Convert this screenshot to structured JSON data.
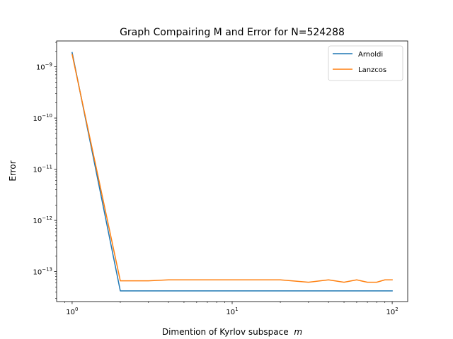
{
  "chart_data": {
    "type": "line",
    "title": "Graph Compairing M and Error for N=524288",
    "xlabel": "Dimention of Kyrlov subspace",
    "xlabel_math": "m",
    "ylabel": "Error",
    "xscale": "log",
    "yscale": "log",
    "xlim": [
      0.8,
      125
    ],
    "ylim": [
      2.6e-14,
      3.2e-09
    ],
    "grid": false,
    "legend_position": "top-right",
    "x_ticks": [
      {
        "value": 1,
        "base": "10",
        "exp": "0"
      },
      {
        "value": 10,
        "base": "10",
        "exp": "1"
      },
      {
        "value": 100,
        "base": "10",
        "exp": "2"
      }
    ],
    "y_ticks": [
      {
        "value": 1e-09,
        "base": "10",
        "exp": "−9"
      },
      {
        "value": 1e-10,
        "base": "10",
        "exp": "−10"
      },
      {
        "value": 1e-11,
        "base": "10",
        "exp": "−11"
      },
      {
        "value": 1e-12,
        "base": "10",
        "exp": "−12"
      },
      {
        "value": 1e-13,
        "base": "10",
        "exp": "−13"
      }
    ],
    "series": [
      {
        "name": "Arnoldi",
        "color": "#1f77b4",
        "x": [
          1,
          2,
          3,
          4,
          5,
          10,
          20,
          30,
          40,
          50,
          60,
          70,
          80,
          90,
          100
        ],
        "y": [
          1.9e-09,
          4.2e-14,
          4.2e-14,
          4.2e-14,
          4.2e-14,
          4.2e-14,
          4.2e-14,
          4.2e-14,
          4.2e-14,
          4.2e-14,
          4.2e-14,
          4.2e-14,
          4.2e-14,
          4.2e-14,
          4.2e-14
        ]
      },
      {
        "name": "Lanzcos",
        "color": "#ff7f0e",
        "x": [
          1,
          2,
          3,
          4,
          5,
          10,
          20,
          30,
          40,
          50,
          60,
          70,
          80,
          90,
          100
        ],
        "y": [
          1.75e-09,
          6.6e-14,
          6.6e-14,
          6.9e-14,
          6.9e-14,
          6.9e-14,
          6.9e-14,
          6.2e-14,
          6.9e-14,
          6.2e-14,
          6.9e-14,
          6.2e-14,
          6.2e-14,
          6.9e-14,
          6.9e-14
        ]
      }
    ]
  }
}
